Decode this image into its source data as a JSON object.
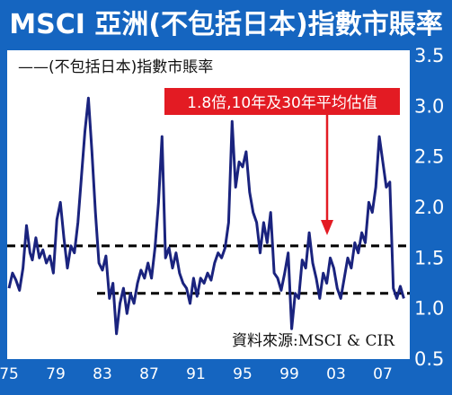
{
  "title": "MSCI 亞洲(不包括日本)指數市賬率",
  "legend_label": "——(不包括日本)指數市賬率",
  "annotation": "1.8倍,10年及30年平均估值",
  "source": "資料來源:MSCI & CIR",
  "colors": {
    "frame": "#1565c0",
    "line": "#1a237e",
    "annotation_bg": "#e31b23",
    "annotation_arrow": "#e31b23",
    "reference": "#000000"
  },
  "chart_data": {
    "type": "line",
    "title": "MSCI 亞洲(不包括日本)指數市賬率",
    "legend": [
      "(不包括日本)指數市賬率"
    ],
    "x_ticks": [
      "75",
      "79",
      "83",
      "87",
      "91",
      "95",
      "99",
      "03",
      "07"
    ],
    "y_ticks": [
      "0.5",
      "1.0",
      "1.5",
      "2.0",
      "2.5",
      "3.0",
      "3.5"
    ],
    "ylim": [
      0.5,
      3.5
    ],
    "xlim": [
      1975,
      2009
    ],
    "reference_lines": [
      1.62,
      1.15
    ],
    "series": [
      {
        "name": "(不包括日本)指數市賬率",
        "x": [
          1975.0,
          1975.3,
          1975.6,
          1975.9,
          1976.2,
          1976.5,
          1976.8,
          1977.0,
          1977.3,
          1977.6,
          1977.9,
          1978.2,
          1978.5,
          1978.8,
          1979.1,
          1979.4,
          1979.7,
          1980.0,
          1980.3,
          1980.6,
          1980.9,
          1981.2,
          1981.5,
          1981.8,
          1982.1,
          1982.4,
          1982.7,
          1983.0,
          1983.3,
          1983.6,
          1983.9,
          1984.2,
          1984.5,
          1984.8,
          1985.1,
          1985.4,
          1985.7,
          1986.0,
          1986.3,
          1986.6,
          1986.9,
          1987.2,
          1987.5,
          1987.8,
          1988.1,
          1988.4,
          1988.7,
          1989.0,
          1989.3,
          1989.6,
          1989.9,
          1990.2,
          1990.5,
          1990.8,
          1991.1,
          1991.4,
          1991.7,
          1992.0,
          1992.3,
          1992.6,
          1992.9,
          1993.2,
          1993.5,
          1993.8,
          1994.1,
          1994.4,
          1994.7,
          1995.0,
          1995.3,
          1995.6,
          1995.9,
          1996.2,
          1996.5,
          1996.8,
          1997.1,
          1997.4,
          1997.7,
          1998.0,
          1998.3,
          1998.6,
          1998.9,
          1999.2,
          1999.5,
          1999.8,
          2000.1,
          2000.4,
          2000.7,
          2001.0,
          2001.3,
          2001.6,
          2001.9,
          2002.2,
          2002.5,
          2002.8,
          2003.1,
          2003.4,
          2003.7,
          2004.0,
          2004.3,
          2004.6,
          2004.9,
          2005.2,
          2005.5,
          2005.8,
          2006.1,
          2006.4,
          2006.7,
          2007.0,
          2007.3,
          2007.6,
          2007.9,
          2008.2,
          2008.5,
          2008.8
        ],
        "y": [
          1.2,
          1.35,
          1.28,
          1.18,
          1.4,
          1.82,
          1.55,
          1.48,
          1.7,
          1.5,
          1.58,
          1.45,
          1.52,
          1.35,
          1.88,
          2.05,
          1.7,
          1.4,
          1.62,
          1.55,
          1.85,
          2.3,
          2.75,
          3.08,
          2.55,
          1.95,
          1.45,
          1.38,
          1.52,
          1.1,
          1.25,
          0.75,
          1.05,
          1.2,
          0.95,
          1.15,
          1.05,
          1.25,
          1.38,
          1.3,
          1.45,
          1.3,
          1.6,
          2.05,
          2.7,
          1.5,
          1.6,
          1.4,
          1.55,
          1.35,
          1.25,
          1.2,
          1.05,
          1.3,
          1.12,
          1.3,
          1.25,
          1.35,
          1.28,
          1.45,
          1.55,
          1.5,
          1.6,
          1.85,
          2.85,
          2.2,
          2.45,
          2.4,
          2.55,
          2.15,
          1.95,
          1.85,
          1.55,
          1.85,
          1.65,
          1.95,
          1.35,
          1.3,
          1.18,
          1.35,
          1.55,
          0.8,
          1.15,
          1.1,
          1.48,
          1.4,
          1.75,
          1.45,
          1.3,
          1.1,
          1.35,
          1.25,
          1.5,
          1.4,
          1.2,
          1.1,
          1.3,
          1.5,
          1.4,
          1.65,
          1.55,
          1.75,
          1.65,
          2.05,
          1.95,
          2.2,
          2.7,
          2.45,
          2.2,
          2.25,
          1.2,
          1.1,
          1.22,
          1.1
        ]
      }
    ]
  }
}
